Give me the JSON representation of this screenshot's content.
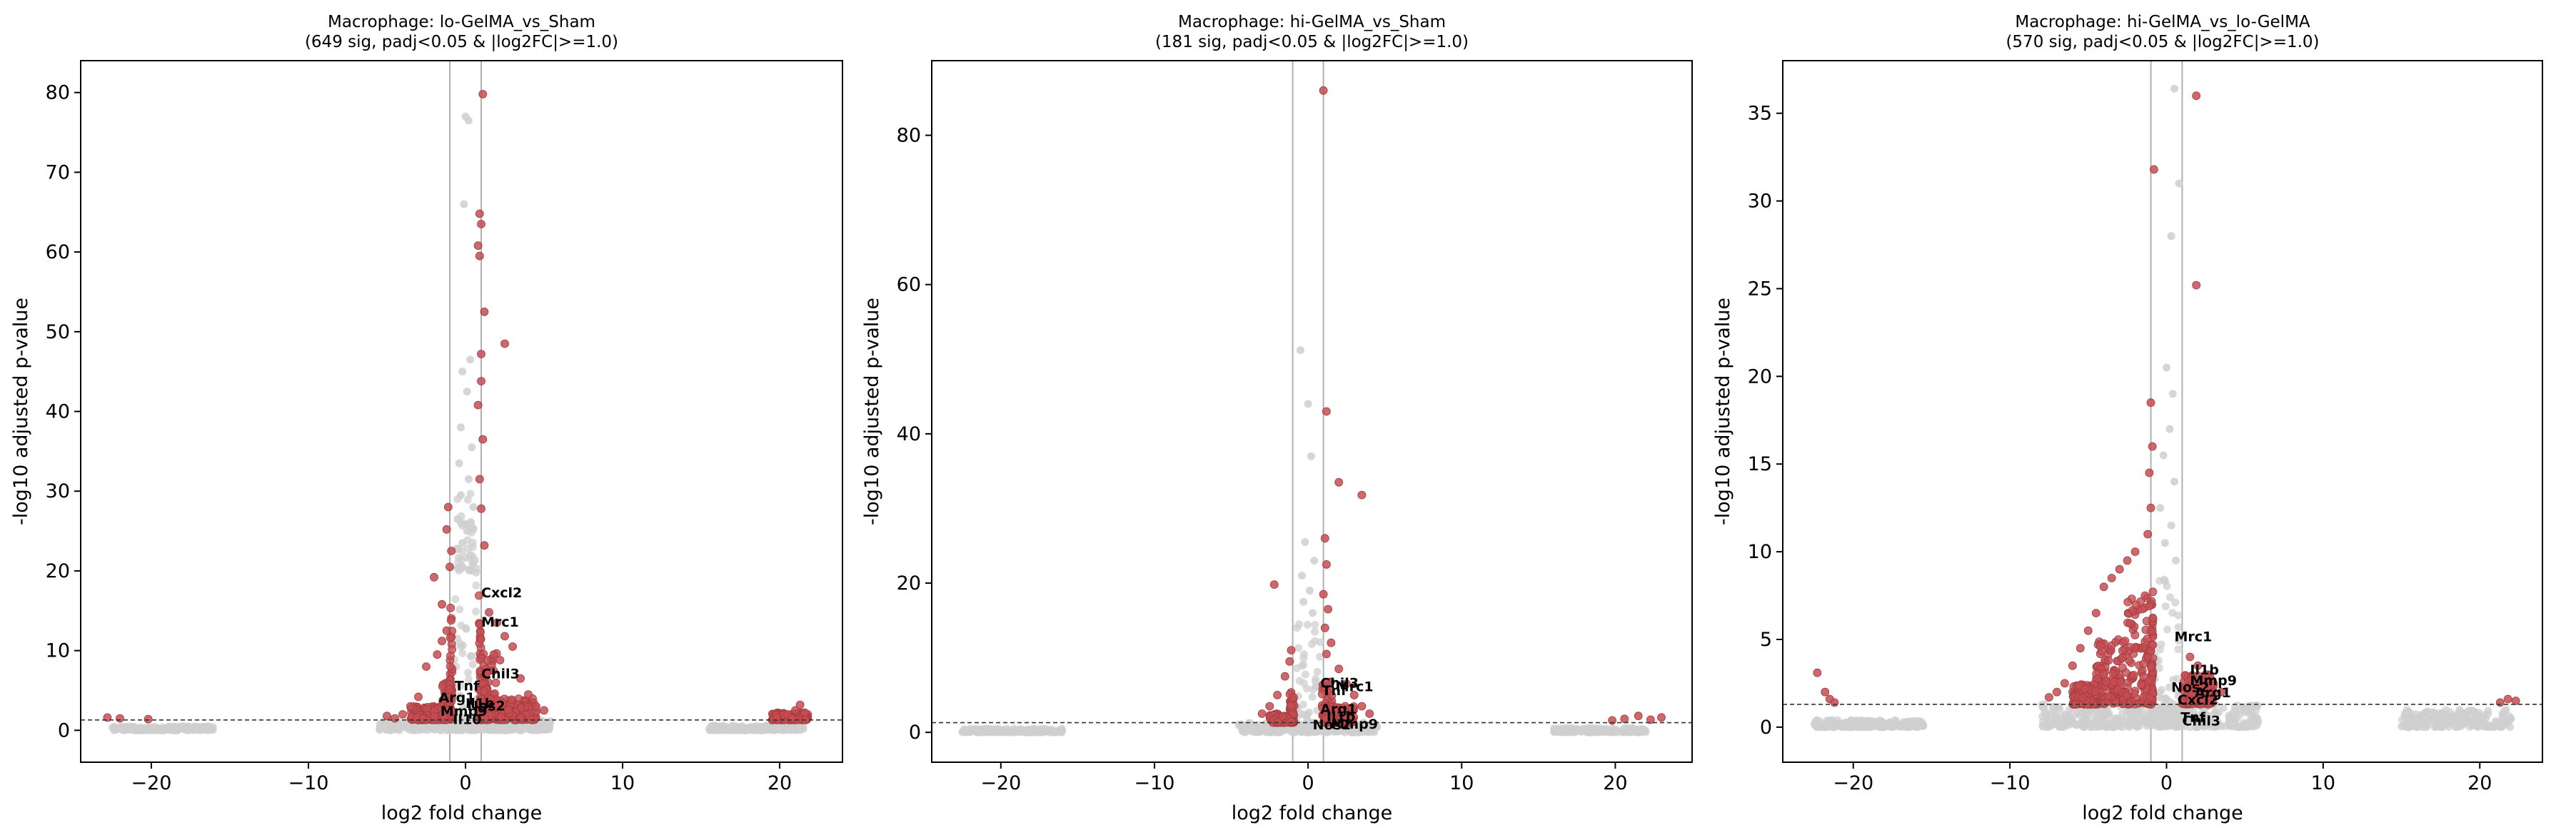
{
  "colors": {
    "sig": "#c44e52",
    "nonsig": "#cfcfcf",
    "threshold_line": "#333333",
    "fc_line": "#b0b0b0",
    "axis": "#000000"
  },
  "chart_data": [
    {
      "type": "scatter",
      "title": "Macrophage: lo-GelMA_vs_Sham",
      "subtitle": "(649 sig, padj<0.05 & |log2FC|>=1.0)",
      "xlabel": "log2 fold change",
      "ylabel": "-log10 adjusted p-value",
      "xlim": [
        -24.5,
        24.0
      ],
      "ylim": [
        -4,
        84
      ],
      "xticks": [
        -20,
        -10,
        0,
        10,
        20
      ],
      "yticks": [
        0,
        10,
        20,
        30,
        40,
        50,
        60,
        70,
        80
      ],
      "grid": false,
      "padj_threshold": 1.3,
      "fc_threshold": 1.0,
      "sig_points": [
        [
          1.1,
          79.8
        ],
        [
          0.9,
          64.8
        ],
        [
          1.0,
          63.5
        ],
        [
          0.8,
          60.8
        ],
        [
          0.9,
          59.5
        ],
        [
          1.2,
          52.5
        ],
        [
          1.0,
          47.2
        ],
        [
          2.5,
          48.5
        ],
        [
          1.0,
          43.8
        ],
        [
          0.8,
          40.8
        ],
        [
          1.1,
          36.5
        ],
        [
          0.9,
          31.5
        ],
        [
          1.0,
          27.8
        ],
        [
          -1.1,
          28.0
        ],
        [
          -1.2,
          25.2
        ],
        [
          1.2,
          23.2
        ],
        [
          -0.9,
          22.5
        ],
        [
          -1.0,
          20.5
        ],
        [
          -2.0,
          19.2
        ],
        [
          -1.5,
          15.8
        ],
        [
          1.5,
          14.8
        ],
        [
          2.0,
          13.5
        ],
        [
          2.5,
          11.8
        ],
        [
          3.0,
          10.5
        ],
        [
          1.8,
          9.5
        ],
        [
          2.2,
          8.8
        ],
        [
          -1.2,
          12.5
        ],
        [
          -1.5,
          11.2
        ],
        [
          -1.8,
          9.5
        ],
        [
          -2.5,
          8.0
        ],
        [
          3.5,
          6.5
        ],
        [
          4.0,
          4.5
        ],
        [
          4.5,
          3.0
        ],
        [
          5.0,
          2.5
        ],
        [
          -3.0,
          4.2
        ],
        [
          -3.5,
          3.0
        ],
        [
          -4.0,
          2.0
        ],
        [
          -4.5,
          1.5
        ],
        [
          -5.0,
          1.8
        ],
        [
          -22.8,
          1.6
        ],
        [
          -22.0,
          1.5
        ],
        [
          -20.2,
          1.4
        ],
        [
          19.8,
          1.6
        ],
        [
          20.5,
          2.0
        ],
        [
          21.0,
          2.5
        ],
        [
          21.3,
          3.2
        ],
        [
          21.6,
          2.2
        ],
        [
          20.8,
          1.5
        ]
      ],
      "sig_bands": [
        {
          "x": [
            -1.0,
            -0.85
          ],
          "y": [
            1.3,
            15.5
          ]
        },
        {
          "x": [
            0.85,
            1.0
          ],
          "y": [
            1.3,
            17.0
          ]
        },
        {
          "x": [
            -1.6,
            -1.0
          ],
          "y": [
            1.3,
            6.0
          ]
        },
        {
          "x": [
            1.0,
            2.0
          ],
          "y": [
            1.3,
            10.0
          ]
        },
        {
          "x": [
            -3.5,
            -1.0
          ],
          "y": [
            1.3,
            3.0
          ]
        },
        {
          "x": [
            1.0,
            4.5
          ],
          "y": [
            1.3,
            4.0
          ]
        },
        {
          "x": [
            19.5,
            21.8
          ],
          "y": [
            1.3,
            2.2
          ]
        }
      ],
      "nonsig_points": [
        [
          0.2,
          76.5
        ],
        [
          0.0,
          77.0
        ],
        [
          -0.1,
          66.0
        ],
        [
          0.3,
          46.5
        ],
        [
          -0.2,
          45.0
        ],
        [
          0.1,
          42.5
        ],
        [
          -0.3,
          38.0
        ],
        [
          0.4,
          35.5
        ],
        [
          -0.4,
          33.5
        ],
        [
          0.2,
          31.5
        ],
        [
          -0.3,
          29.5
        ],
        [
          0.5,
          28.0
        ],
        [
          -0.5,
          26.5
        ],
        [
          0.1,
          25.0
        ],
        [
          -0.2,
          23.5
        ],
        [
          0.3,
          22.0
        ]
      ],
      "nonsig_bands": [
        {
          "x": [
            -0.8,
            0.8
          ],
          "y": [
            0.0,
            22.0
          ]
        },
        {
          "x": [
            -0.6,
            0.6
          ],
          "y": [
            20.0,
            30.0
          ]
        },
        {
          "x": [
            -5.5,
            5.5
          ],
          "y": [
            0.0,
            1.3
          ]
        },
        {
          "x": [
            -22.5,
            -16.0
          ],
          "y": [
            0.0,
            0.5
          ]
        },
        {
          "x": [
            15.5,
            21.5
          ],
          "y": [
            0.0,
            0.6
          ]
        }
      ],
      "annotations": [
        {
          "label": "Cxcl2",
          "x": 1.0,
          "y": 16.7
        },
        {
          "label": "Mrc1",
          "x": 1.0,
          "y": 13.0
        },
        {
          "label": "Chil3",
          "x": 1.0,
          "y": 6.5
        },
        {
          "label": "Tnf",
          "x": -0.7,
          "y": 5.0
        },
        {
          "label": "Arg1",
          "x": -1.7,
          "y": 3.5
        },
        {
          "label": "Il1b",
          "x": 0.0,
          "y": 2.8
        },
        {
          "label": "Mmp9",
          "x": -1.6,
          "y": 1.8
        },
        {
          "label": "Nos2",
          "x": 0.1,
          "y": 2.5
        },
        {
          "label": "Il10",
          "x": -0.8,
          "y": 0.8
        }
      ]
    },
    {
      "type": "scatter",
      "title": "Macrophage: hi-GelMA_vs_Sham",
      "subtitle": "(181 sig, padj<0.05 & |log2FC|>=1.0)",
      "xlabel": "log2 fold change",
      "ylabel": "-log10 adjusted p-value",
      "xlim": [
        -24.5,
        25.0
      ],
      "ylim": [
        -4,
        90
      ],
      "xticks": [
        -20,
        -10,
        0,
        10,
        20
      ],
      "yticks": [
        0,
        20,
        40,
        60,
        80
      ],
      "grid": false,
      "padj_threshold": 1.3,
      "fc_threshold": 1.0,
      "sig_points": [
        [
          1.0,
          86.0
        ],
        [
          1.2,
          43.0
        ],
        [
          2.0,
          33.5
        ],
        [
          3.5,
          31.8
        ],
        [
          -2.2,
          19.8
        ],
        [
          1.1,
          26.0
        ],
        [
          1.2,
          22.5
        ],
        [
          1.0,
          18.5
        ],
        [
          1.3,
          16.5
        ],
        [
          1.1,
          14.0
        ],
        [
          1.5,
          12.0
        ],
        [
          1.2,
          10.5
        ],
        [
          -1.1,
          11.0
        ],
        [
          -1.2,
          9.5
        ],
        [
          -1.5,
          7.5
        ],
        [
          2.0,
          8.5
        ],
        [
          2.5,
          6.5
        ],
        [
          3.0,
          5.0
        ],
        [
          3.5,
          3.5
        ],
        [
          4.0,
          2.5
        ],
        [
          -2.0,
          5.0
        ],
        [
          -2.5,
          3.5
        ],
        [
          -3.0,
          2.5
        ],
        [
          19.8,
          1.6
        ],
        [
          20.6,
          1.8
        ],
        [
          21.5,
          2.2
        ],
        [
          22.3,
          1.7
        ],
        [
          23.0,
          2.0
        ]
      ],
      "sig_bands": [
        {
          "x": [
            0.9,
            1.6
          ],
          "y": [
            1.3,
            7.0
          ]
        },
        {
          "x": [
            -1.2,
            -0.9
          ],
          "y": [
            1.3,
            5.5
          ]
        },
        {
          "x": [
            1.0,
            3.0
          ],
          "y": [
            1.3,
            3.5
          ]
        },
        {
          "x": [
            -2.5,
            -1.0
          ],
          "y": [
            1.3,
            2.5
          ]
        }
      ],
      "nonsig_points": [
        [
          -0.5,
          51.2
        ],
        [
          0.0,
          44.0
        ],
        [
          0.2,
          37.0
        ],
        [
          -0.2,
          25.5
        ],
        [
          0.4,
          23.0
        ],
        [
          -0.4,
          21.0
        ],
        [
          0.1,
          19.0
        ],
        [
          -0.3,
          17.5
        ],
        [
          0.3,
          16.0
        ]
      ],
      "nonsig_bands": [
        {
          "x": [
            -0.8,
            0.8
          ],
          "y": [
            0.0,
            15.0
          ]
        },
        {
          "x": [
            -4.5,
            4.5
          ],
          "y": [
            0.0,
            1.3
          ]
        },
        {
          "x": [
            -22.5,
            -16.0
          ],
          "y": [
            0.0,
            0.5
          ]
        },
        {
          "x": [
            16.0,
            22.0
          ],
          "y": [
            0.0,
            0.6
          ]
        }
      ],
      "annotations": [
        {
          "label": "Chil3",
          "x": 0.8,
          "y": 6.0
        },
        {
          "label": "Mrc1",
          "x": 1.8,
          "y": 5.5
        },
        {
          "label": "Tnf",
          "x": 0.9,
          "y": 5.0
        },
        {
          "label": "Arg1",
          "x": 0.8,
          "y": 2.5
        },
        {
          "label": "Il1b",
          "x": 1.2,
          "y": 1.5
        },
        {
          "label": "Mmp9",
          "x": 1.5,
          "y": 0.5
        },
        {
          "label": "Nos2",
          "x": 0.3,
          "y": 0.4
        }
      ]
    },
    {
      "type": "scatter",
      "title": "Macrophage: hi-GelMA_vs_lo-GelMA",
      "subtitle": "(570 sig, padj<0.05 & |log2FC|>=1.0)",
      "xlabel": "log2 fold change",
      "ylabel": "-log10 adjusted p-value",
      "xlim": [
        -24.5,
        24.0
      ],
      "ylim": [
        -2,
        38
      ],
      "xticks": [
        -20,
        -10,
        0,
        10,
        20
      ],
      "yticks": [
        0,
        5,
        10,
        15,
        20,
        25,
        30,
        35
      ],
      "grid": false,
      "padj_threshold": 1.3,
      "fc_threshold": 1.0,
      "sig_points": [
        [
          1.9,
          36.0
        ],
        [
          -0.8,
          31.8
        ],
        [
          1.9,
          25.2
        ],
        [
          -1.0,
          18.5
        ],
        [
          -0.9,
          16.0
        ],
        [
          -1.1,
          14.5
        ],
        [
          -1.0,
          12.5
        ],
        [
          -1.2,
          11.0
        ],
        [
          -2.0,
          10.0
        ],
        [
          -2.5,
          9.5
        ],
        [
          -3.0,
          9.0
        ],
        [
          -3.5,
          8.5
        ],
        [
          -4.0,
          8.0
        ],
        [
          -4.5,
          6.5
        ],
        [
          -5.0,
          5.5
        ],
        [
          -5.5,
          4.5
        ],
        [
          -6.0,
          3.5
        ],
        [
          -6.5,
          2.5
        ],
        [
          -7.0,
          2.0
        ],
        [
          -7.5,
          1.7
        ],
        [
          1.5,
          4.0
        ],
        [
          2.0,
          3.5
        ],
        [
          2.5,
          3.0
        ],
        [
          3.0,
          2.5
        ],
        [
          3.5,
          2.0
        ],
        [
          -22.3,
          3.1
        ],
        [
          -21.8,
          2.0
        ],
        [
          -21.5,
          1.6
        ],
        [
          -21.2,
          1.4
        ],
        [
          21.3,
          1.4
        ],
        [
          21.8,
          1.6
        ],
        [
          22.3,
          1.5
        ]
      ],
      "sig_bands": [
        {
          "x": [
            -1.0,
            -0.85
          ],
          "y": [
            1.3,
            8.0
          ]
        },
        {
          "x": [
            -2.5,
            -1.0
          ],
          "y": [
            1.3,
            7.5
          ]
        },
        {
          "x": [
            -4.5,
            -2.5
          ],
          "y": [
            1.3,
            5.0
          ]
        },
        {
          "x": [
            -6.0,
            -4.5
          ],
          "y": [
            1.3,
            2.5
          ]
        },
        {
          "x": [
            1.0,
            3.0
          ],
          "y": [
            1.3,
            3.0
          ]
        }
      ],
      "nonsig_points": [
        [
          0.5,
          36.4
        ],
        [
          0.8,
          31.0
        ],
        [
          0.3,
          28.0
        ],
        [
          0.0,
          20.5
        ],
        [
          0.4,
          19.0
        ],
        [
          0.2,
          17.0
        ],
        [
          -0.2,
          15.5
        ],
        [
          0.5,
          14.0
        ],
        [
          -0.4,
          12.5
        ],
        [
          0.3,
          11.5
        ],
        [
          -0.1,
          10.5
        ],
        [
          0.6,
          9.5
        ]
      ],
      "nonsig_bands": [
        {
          "x": [
            -0.8,
            0.8
          ],
          "y": [
            0.0,
            9.0
          ]
        },
        {
          "x": [
            -8.0,
            6.0
          ],
          "y": [
            0.0,
            1.3
          ]
        },
        {
          "x": [
            -22.5,
            -15.5
          ],
          "y": [
            0.0,
            0.4
          ]
        },
        {
          "x": [
            15.0,
            22.0
          ],
          "y": [
            0.0,
            1.0
          ]
        }
      ],
      "annotations": [
        {
          "label": "Mrc1",
          "x": 0.5,
          "y": 4.9
        },
        {
          "label": "Il1b",
          "x": 1.5,
          "y": 3.0
        },
        {
          "label": "Mmp9",
          "x": 1.5,
          "y": 2.4
        },
        {
          "label": "Nos2",
          "x": 0.3,
          "y": 2.0
        },
        {
          "label": "Arg1",
          "x": 1.8,
          "y": 1.7
        },
        {
          "label": "Cxcl2",
          "x": 0.7,
          "y": 1.3
        },
        {
          "label": "Tnf",
          "x": 0.9,
          "y": 0.3
        },
        {
          "label": "Chil3",
          "x": 1.0,
          "y": 0.1
        }
      ]
    }
  ]
}
